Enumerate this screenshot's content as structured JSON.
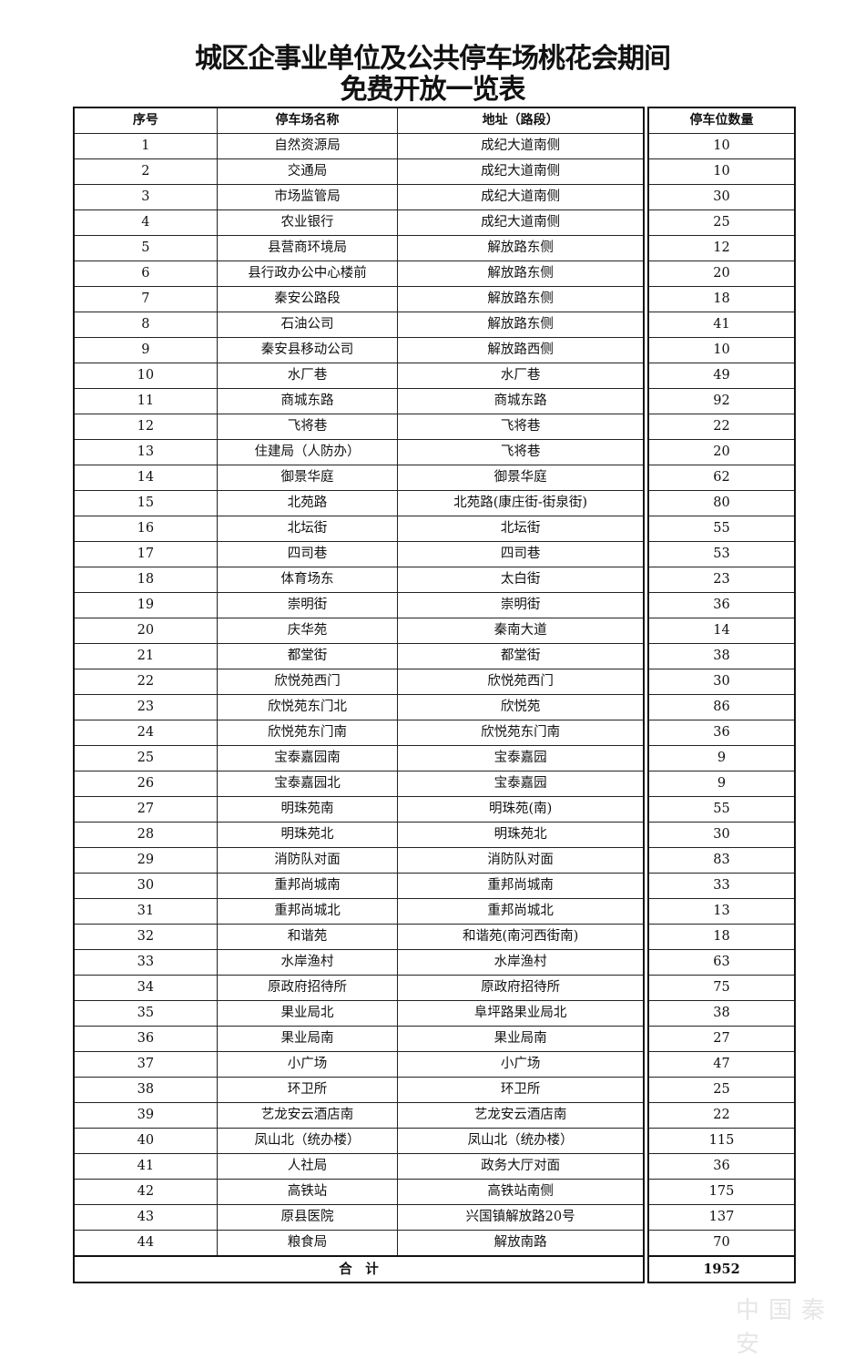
{
  "title_line1": "城区企事业单位及公共停车场桃花会期间",
  "title_line2": "免费开放一览表",
  "headers": {
    "no": "序号",
    "name": "停车场名称",
    "address": "地址（路段）",
    "spaces": "停车位数量"
  },
  "rows": [
    [
      "1",
      "自然资源局",
      "成纪大道南侧",
      "10"
    ],
    [
      "2",
      "交通局",
      "成纪大道南侧",
      "10"
    ],
    [
      "3",
      "市场监管局",
      "成纪大道南侧",
      "30"
    ],
    [
      "4",
      "农业银行",
      "成纪大道南侧",
      "25"
    ],
    [
      "5",
      "县营商环境局",
      "解放路东侧",
      "12"
    ],
    [
      "6",
      "县行政办公中心楼前",
      "解放路东侧",
      "20"
    ],
    [
      "7",
      "秦安公路段",
      "解放路东侧",
      "18"
    ],
    [
      "8",
      "石油公司",
      "解放路东侧",
      "41"
    ],
    [
      "9",
      "秦安县移动公司",
      "解放路西侧",
      "10"
    ],
    [
      "10",
      "水厂巷",
      "水厂巷",
      "49"
    ],
    [
      "11",
      "商城东路",
      "商城东路",
      "92"
    ],
    [
      "12",
      "飞将巷",
      "飞将巷",
      "22"
    ],
    [
      "13",
      "住建局（人防办）",
      "飞将巷",
      "20"
    ],
    [
      "14",
      "御景华庭",
      "御景华庭",
      "62"
    ],
    [
      "15",
      "北苑路",
      "北苑路(康庄街-街泉街)",
      "80"
    ],
    [
      "16",
      "北坛街",
      "北坛街",
      "55"
    ],
    [
      "17",
      "四司巷",
      "四司巷",
      "53"
    ],
    [
      "18",
      "体育场东",
      "太白街",
      "23"
    ],
    [
      "19",
      "崇明街",
      "崇明街",
      "36"
    ],
    [
      "20",
      "庆华苑",
      "秦南大道",
      "14"
    ],
    [
      "21",
      "都堂街",
      "都堂街",
      "38"
    ],
    [
      "22",
      "欣悦苑西门",
      "欣悦苑西门",
      "30"
    ],
    [
      "23",
      "欣悦苑东门北",
      "欣悦苑",
      "86"
    ],
    [
      "24",
      "欣悦苑东门南",
      "欣悦苑东门南",
      "36"
    ],
    [
      "25",
      "宝泰嘉园南",
      "宝泰嘉园",
      "9"
    ],
    [
      "26",
      "宝泰嘉园北",
      "宝泰嘉园",
      "9"
    ],
    [
      "27",
      "明珠苑南",
      "明珠苑(南)",
      "55"
    ],
    [
      "28",
      "明珠苑北",
      "明珠苑北",
      "30"
    ],
    [
      "29",
      "消防队对面",
      "消防队对面",
      "83"
    ],
    [
      "30",
      "重邦尚城南",
      "重邦尚城南",
      "33"
    ],
    [
      "31",
      "重邦尚城北",
      "重邦尚城北",
      "13"
    ],
    [
      "32",
      "和谐苑",
      "和谐苑(南河西街南)",
      "18"
    ],
    [
      "33",
      "水岸渔村",
      "水岸渔村",
      "63"
    ],
    [
      "34",
      "原政府招待所",
      "原政府招待所",
      "75"
    ],
    [
      "35",
      "果业局北",
      "阜坪路果业局北",
      "38"
    ],
    [
      "36",
      "果业局南",
      "果业局南",
      "27"
    ],
    [
      "37",
      "小广场",
      "小广场",
      "47"
    ],
    [
      "38",
      "环卫所",
      "环卫所",
      "25"
    ],
    [
      "39",
      "艺龙安云酒店南",
      "艺龙安云酒店南",
      "22"
    ],
    [
      "40",
      "凤山北（统办楼）",
      "凤山北（统办楼）",
      "115"
    ],
    [
      "41",
      "人社局",
      "政务大厅对面",
      "36"
    ],
    [
      "42",
      "高铁站",
      "高铁站南侧",
      "175"
    ],
    [
      "43",
      "原县医院",
      "兴国镇解放路20号",
      "137"
    ],
    [
      "44",
      "粮食局",
      "解放南路",
      "70"
    ]
  ],
  "total_label": "合　计",
  "total_value": "1952",
  "watermark": "中国秦安"
}
